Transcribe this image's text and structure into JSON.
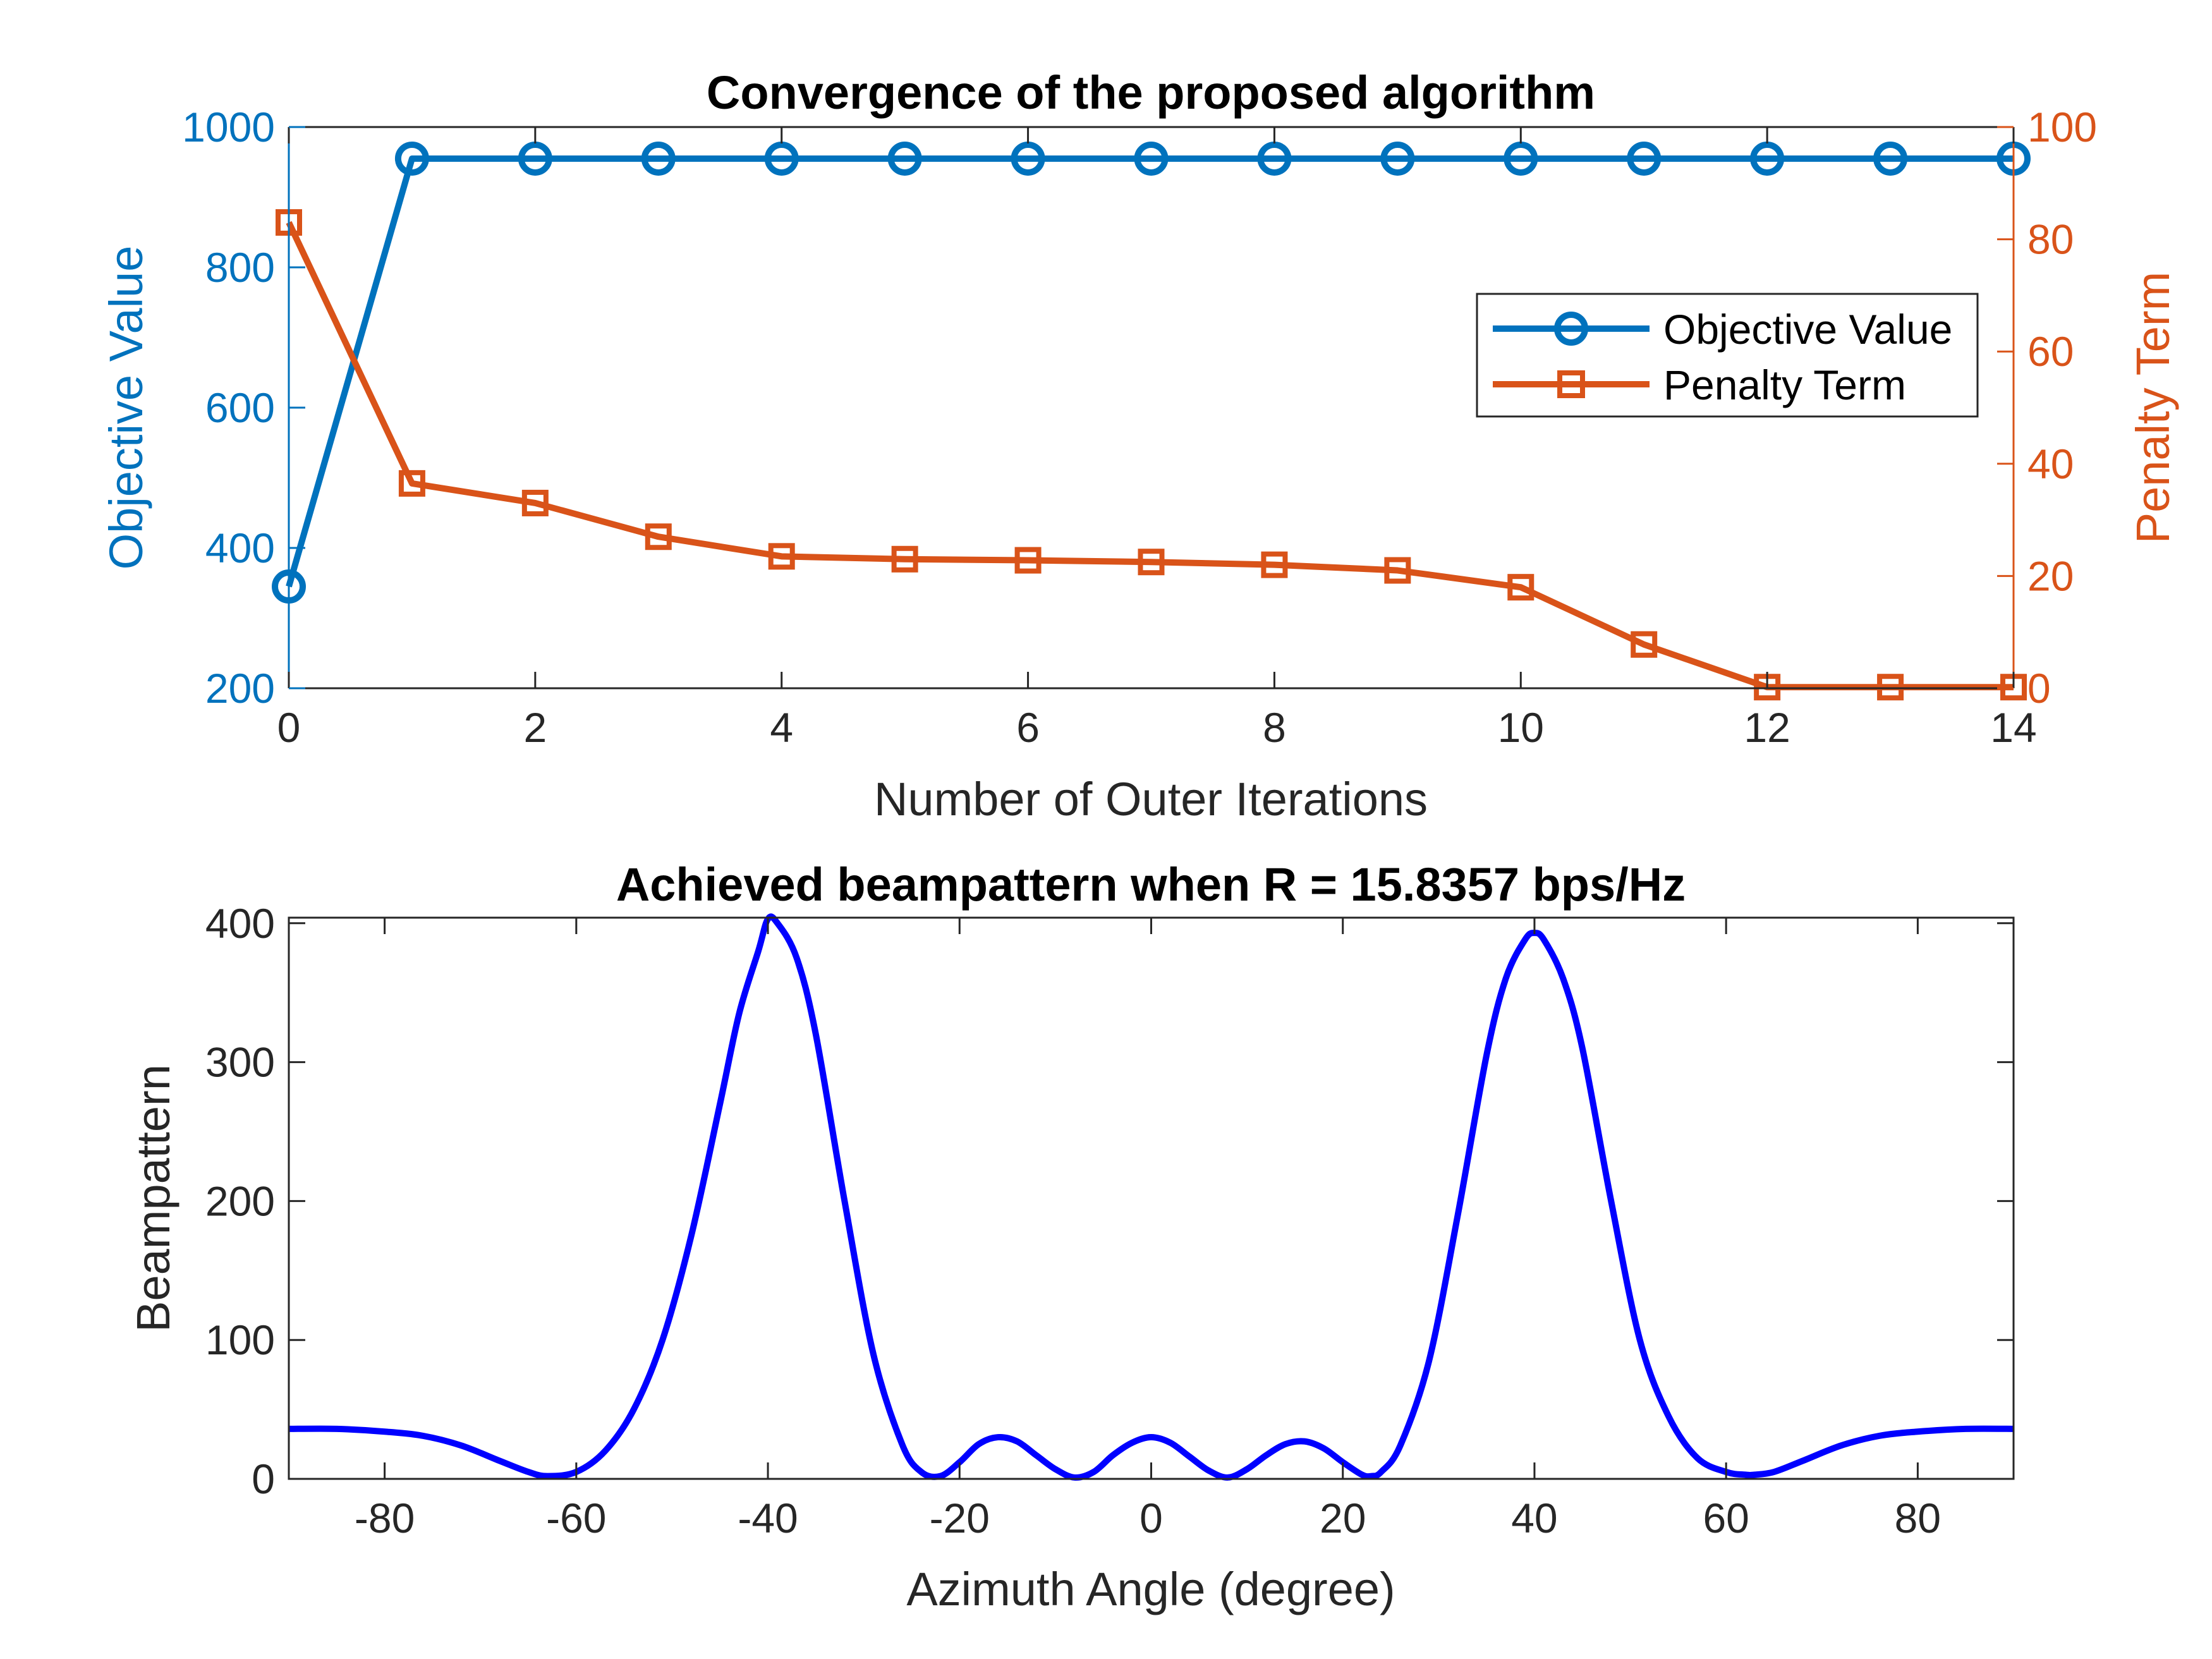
{
  "chart_data": [
    {
      "type": "line",
      "title": "Convergence of the proposed algorithm",
      "xlabel": "Number of Outer Iterations",
      "ylabel": "Objective Value",
      "ylabel_right": "Penalty Term",
      "xlim": [
        0,
        14
      ],
      "ylim": [
        200,
        1000
      ],
      "ylim_right": [
        0,
        100
      ],
      "x_ticks": [
        "0",
        "2",
        "4",
        "6",
        "8",
        "10",
        "12",
        "14"
      ],
      "y_ticks": [
        "200",
        "400",
        "600",
        "800",
        "1000"
      ],
      "y_ticks_right": [
        "0",
        "20",
        "40",
        "60",
        "80",
        "100"
      ],
      "legend_position": "right",
      "x": [
        0,
        1,
        2,
        3,
        4,
        5,
        6,
        7,
        8,
        9,
        10,
        11,
        12,
        13,
        14
      ],
      "series": [
        {
          "name": "Objective Value",
          "axis": "left",
          "marker": "circle",
          "color": "#0072BD",
          "values": [
            345,
            955,
            955,
            955,
            955,
            955,
            955,
            955,
            955,
            955,
            955,
            955,
            955,
            955,
            955
          ]
        },
        {
          "name": "Penalty Term",
          "axis": "right",
          "marker": "square",
          "color": "#D95319",
          "values": [
            83,
            36.5,
            33,
            27,
            23.5,
            23,
            22.8,
            22.5,
            22,
            21,
            18,
            7.8,
            0.2,
            0.2,
            0.2
          ]
        }
      ],
      "left_axis_color": "#0072BD",
      "right_axis_color": "#D95319"
    },
    {
      "type": "line",
      "title": "Achieved beampattern when R = 15.8357 bps/Hz",
      "xlabel": "Azimuth Angle (degree)",
      "ylabel": "Beampattern",
      "xlim": [
        -90,
        90
      ],
      "ylim": [
        0,
        400
      ],
      "x_ticks": [
        "-80",
        "-60",
        "-40",
        "-20",
        "0",
        "20",
        "40",
        "60",
        "80"
      ],
      "y_ticks": [
        "0",
        "100",
        "200",
        "300",
        "400"
      ],
      "series": [
        {
          "name": "Beampattern",
          "color": "#0000FF",
          "x": [
            -90,
            -85,
            -80,
            -76,
            -72,
            -68,
            -65,
            -63,
            -60,
            -57,
            -54,
            -51,
            -48,
            -45,
            -43,
            -41,
            -40,
            -39,
            -37,
            -35,
            -32,
            -29,
            -26,
            -24,
            -22,
            -20,
            -18,
            -16,
            -14,
            -12,
            -10,
            -8,
            -6,
            -4,
            -2,
            0,
            2,
            4,
            6,
            8,
            10,
            12,
            14,
            16,
            18,
            20,
            22,
            23,
            24,
            26,
            29,
            32,
            35,
            37,
            39,
            40,
            41,
            43,
            45,
            48,
            51,
            54,
            57,
            60,
            62,
            63,
            65,
            68,
            72,
            76,
            80,
            85,
            90
          ],
          "values": [
            36,
            36,
            34,
            31,
            24,
            13,
            5,
            2,
            5,
            20,
            50,
            100,
            175,
            270,
            335,
            380,
            403,
            400,
            375,
            320,
            200,
            90,
            25,
            5,
            2,
            12,
            25,
            30,
            27,
            17,
            7,
            1,
            5,
            17,
            26,
            30,
            26,
            16,
            6,
            1,
            7,
            17,
            25,
            27,
            22,
            12,
            3,
            2,
            5,
            24,
            85,
            190,
            305,
            360,
            388,
            393,
            388,
            360,
            310,
            200,
            100,
            45,
            15,
            5,
            3,
            3,
            5,
            13,
            24,
            31,
            34,
            36,
            36
          ]
        }
      ]
    }
  ]
}
